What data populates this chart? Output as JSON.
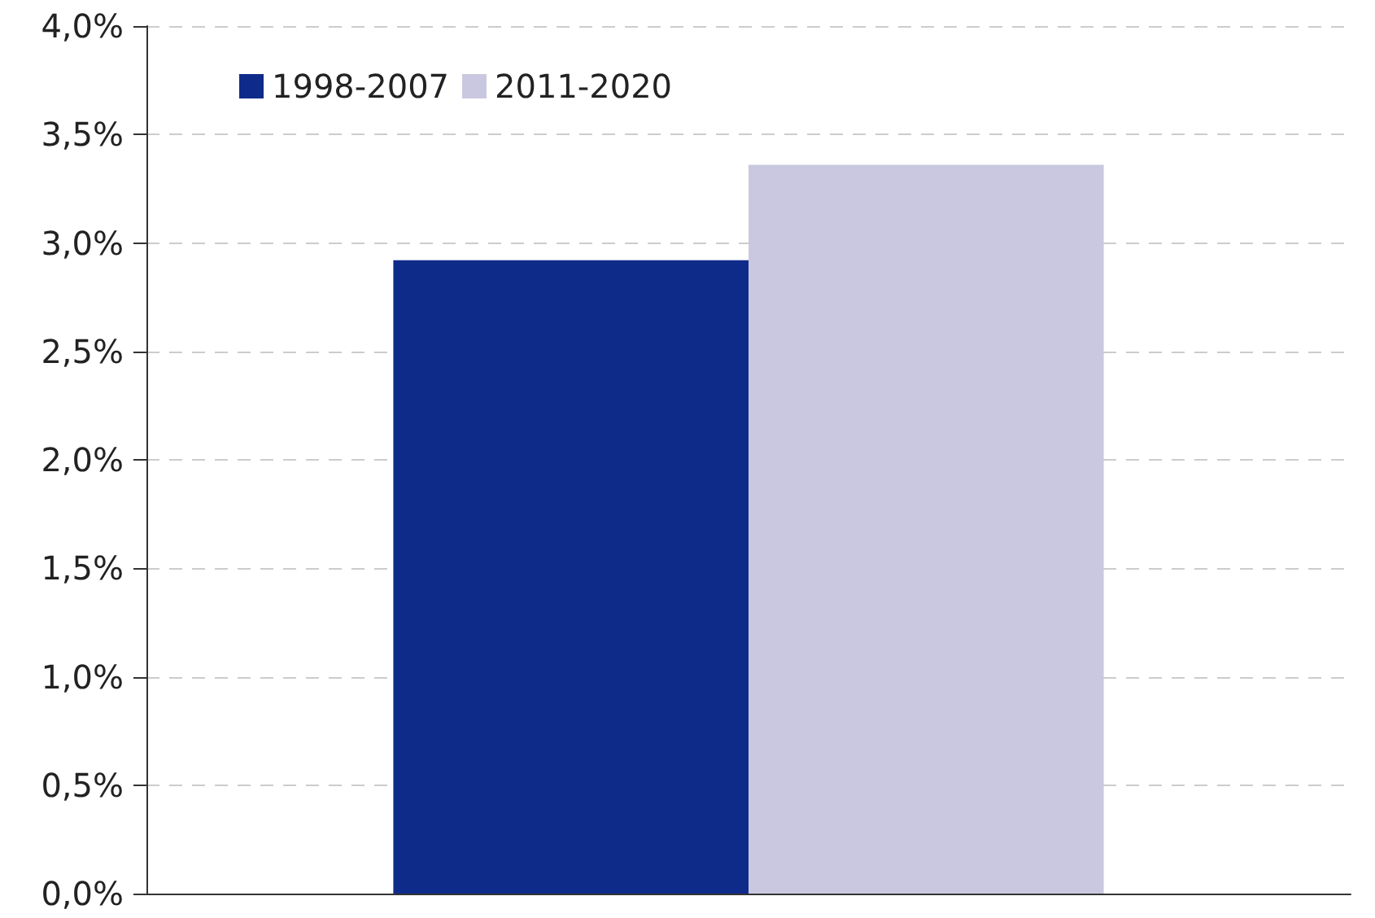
{
  "chart_data": {
    "type": "bar",
    "categories": [
      null
    ],
    "series": [
      {
        "name": "1998-2007",
        "color": "#0f2b8a",
        "values": [
          2.92
        ]
      },
      {
        "name": "2011-2020",
        "color": "#cac8e0",
        "values": [
          3.36
        ]
      }
    ],
    "ylim": [
      0,
      4
    ],
    "yticks": [
      {
        "value": 0,
        "label": "0,0%"
      },
      {
        "value": 0.5,
        "label": "0,5%"
      },
      {
        "value": 1,
        "label": "1,0%"
      },
      {
        "value": 1.5,
        "label": "1,5%"
      },
      {
        "value": 2,
        "label": "2,0%"
      },
      {
        "value": 2.5,
        "label": "2,5%"
      },
      {
        "value": 3,
        "label": "3,0%"
      },
      {
        "value": 3.5,
        "label": "3,5%"
      },
      {
        "value": 4,
        "label": "4,0%"
      }
    ],
    "grid": "y",
    "legend": "top left"
  }
}
